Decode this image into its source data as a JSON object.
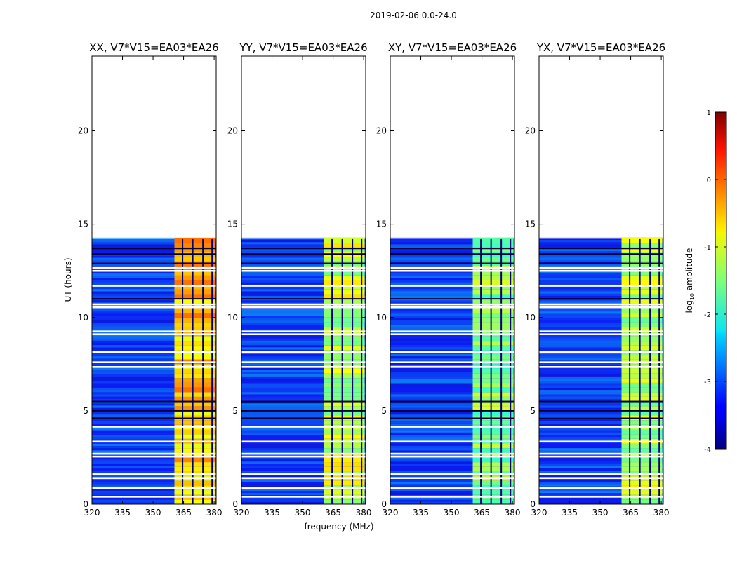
{
  "suptitle": "2019-02-06 0.0-24.0",
  "chart_data": {
    "type": "heatmap",
    "xlabel": "frequency (MHz)",
    "ylabel": "UT (hours)",
    "xlim": [
      320,
      381
    ],
    "ylim": [
      0,
      24
    ],
    "x_ticks": [
      320,
      335,
      350,
      365,
      380
    ],
    "y_ticks": [
      0,
      5,
      10,
      15,
      20
    ],
    "data_extent_hours": [
      0.0,
      14.2
    ],
    "strong_band_mhz": [
      360.5,
      380.5
    ],
    "channel_gap_lines_mhz": [
      364.5,
      369.5,
      374.5,
      379.0
    ],
    "panels": [
      {
        "title": "XX, V7*V15=EA03*EA26",
        "band_level": -0.5
      },
      {
        "title": "YY, V7*V15=EA03*EA26",
        "band_level": -1.1
      },
      {
        "title": "XY, V7*V15=EA03*EA26",
        "band_level": -1.4
      },
      {
        "title": "YX, V7*V15=EA03*EA26",
        "band_level": -1.2
      }
    ],
    "gap_rows_hours": [
      0.35,
      0.8,
      1.35,
      1.55,
      2.5,
      2.65,
      3.3,
      4.1,
      7.3,
      7.55,
      8.1,
      9.05,
      9.2,
      10.5,
      10.65,
      11.65,
      12.45,
      12.6
    ],
    "colorbar": {
      "label": "log",
      "label_sub": "10",
      "label_tail": " amplitude",
      "range": [
        -4,
        1
      ],
      "ticks": [
        1,
        0,
        -1,
        -2,
        -3,
        -4
      ]
    }
  }
}
